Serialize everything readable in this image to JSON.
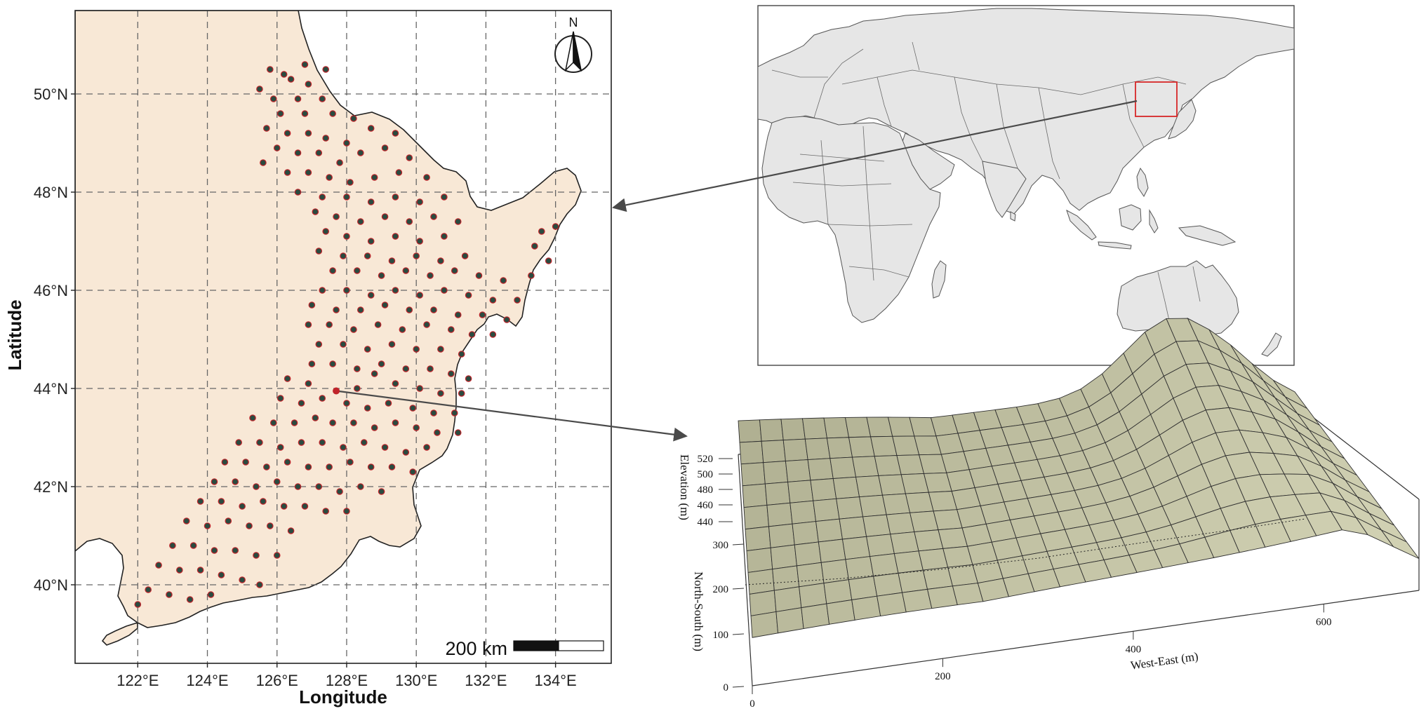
{
  "study_map": {
    "x_axis_title": "Longitude",
    "y_axis_title": "Latitude",
    "longitude_ticks": [
      "122°E",
      "124°E",
      "126°E",
      "128°E",
      "130°E",
      "132°E",
      "134°E"
    ],
    "latitude_ticks": [
      "40°N",
      "42°N",
      "44°N",
      "46°N",
      "48°N",
      "50°N"
    ],
    "lon_range": [
      120.2,
      135.6
    ],
    "lat_range": [
      38.4,
      51.7
    ],
    "north_arrow_label": "N",
    "scale_bar_label": "200 km",
    "grid": "dashed",
    "land_color": "#f8e8d6",
    "point_fill_color": "#2a4b40",
    "point_outline_color": "#c0242a",
    "highlight_point_color": "#c0242a",
    "highlighted_site": {
      "lon": 127.7,
      "lat": 43.95
    },
    "sample_sites": [
      [
        125.8,
        50.5
      ],
      [
        126.2,
        50.4
      ],
      [
        126.8,
        50.6
      ],
      [
        127.4,
        50.5
      ],
      [
        126.4,
        50.3
      ],
      [
        125.5,
        50.1
      ],
      [
        126.9,
        50.2
      ],
      [
        125.9,
        49.9
      ],
      [
        126.6,
        49.9
      ],
      [
        127.3,
        49.9
      ],
      [
        126.1,
        49.6
      ],
      [
        126.8,
        49.6
      ],
      [
        127.6,
        49.6
      ],
      [
        128.2,
        49.5
      ],
      [
        125.7,
        49.3
      ],
      [
        126.3,
        49.2
      ],
      [
        126.9,
        49.2
      ],
      [
        127.4,
        49.1
      ],
      [
        128.0,
        49.0
      ],
      [
        128.7,
        49.3
      ],
      [
        129.4,
        49.2
      ],
      [
        126.0,
        48.9
      ],
      [
        126.6,
        48.8
      ],
      [
        127.2,
        48.8
      ],
      [
        127.8,
        48.6
      ],
      [
        128.4,
        48.8
      ],
      [
        129.1,
        48.9
      ],
      [
        129.8,
        48.7
      ],
      [
        125.6,
        48.6
      ],
      [
        126.3,
        48.4
      ],
      [
        126.9,
        48.4
      ],
      [
        127.5,
        48.3
      ],
      [
        128.1,
        48.2
      ],
      [
        128.8,
        48.3
      ],
      [
        129.5,
        48.4
      ],
      [
        130.3,
        48.3
      ],
      [
        126.6,
        48.0
      ],
      [
        127.3,
        47.9
      ],
      [
        128.0,
        47.9
      ],
      [
        128.7,
        47.8
      ],
      [
        129.4,
        47.9
      ],
      [
        130.1,
        47.8
      ],
      [
        130.8,
        47.9
      ],
      [
        127.1,
        47.6
      ],
      [
        127.7,
        47.5
      ],
      [
        128.4,
        47.4
      ],
      [
        129.1,
        47.5
      ],
      [
        129.8,
        47.4
      ],
      [
        130.5,
        47.5
      ],
      [
        131.2,
        47.4
      ],
      [
        127.4,
        47.2
      ],
      [
        128.0,
        47.1
      ],
      [
        128.7,
        47.0
      ],
      [
        129.4,
        47.1
      ],
      [
        130.1,
        47.0
      ],
      [
        130.8,
        47.1
      ],
      [
        133.6,
        47.2
      ],
      [
        134.0,
        47.3
      ],
      [
        127.2,
        46.8
      ],
      [
        127.9,
        46.7
      ],
      [
        128.6,
        46.7
      ],
      [
        129.3,
        46.6
      ],
      [
        130.0,
        46.7
      ],
      [
        130.7,
        46.6
      ],
      [
        131.4,
        46.7
      ],
      [
        133.4,
        46.9
      ],
      [
        133.8,
        46.6
      ],
      [
        127.6,
        46.4
      ],
      [
        128.3,
        46.4
      ],
      [
        129.0,
        46.3
      ],
      [
        129.7,
        46.4
      ],
      [
        130.4,
        46.3
      ],
      [
        131.1,
        46.4
      ],
      [
        131.8,
        46.3
      ],
      [
        132.5,
        46.2
      ],
      [
        133.3,
        46.3
      ],
      [
        127.3,
        46.0
      ],
      [
        128.0,
        46.0
      ],
      [
        128.7,
        45.9
      ],
      [
        129.4,
        46.0
      ],
      [
        130.1,
        45.9
      ],
      [
        130.8,
        46.0
      ],
      [
        131.5,
        45.9
      ],
      [
        132.2,
        45.8
      ],
      [
        132.9,
        45.8
      ],
      [
        127.0,
        45.7
      ],
      [
        127.7,
        45.6
      ],
      [
        128.4,
        45.6
      ],
      [
        129.1,
        45.7
      ],
      [
        129.8,
        45.6
      ],
      [
        130.5,
        45.6
      ],
      [
        131.2,
        45.5
      ],
      [
        131.9,
        45.5
      ],
      [
        132.6,
        45.4
      ],
      [
        126.9,
        45.3
      ],
      [
        127.5,
        45.3
      ],
      [
        128.2,
        45.2
      ],
      [
        128.9,
        45.3
      ],
      [
        129.6,
        45.2
      ],
      [
        130.3,
        45.3
      ],
      [
        131.0,
        45.2
      ],
      [
        131.6,
        45.1
      ],
      [
        132.2,
        45.1
      ],
      [
        127.2,
        44.9
      ],
      [
        127.9,
        44.9
      ],
      [
        128.6,
        44.8
      ],
      [
        129.3,
        44.9
      ],
      [
        130.0,
        44.8
      ],
      [
        130.7,
        44.8
      ],
      [
        131.3,
        44.7
      ],
      [
        127.0,
        44.5
      ],
      [
        127.6,
        44.5
      ],
      [
        128.3,
        44.4
      ],
      [
        129.0,
        44.5
      ],
      [
        129.7,
        44.4
      ],
      [
        130.4,
        44.4
      ],
      [
        131.0,
        44.3
      ],
      [
        131.5,
        44.2
      ],
      [
        126.3,
        44.2
      ],
      [
        126.9,
        44.1
      ],
      [
        128.3,
        44.0
      ],
      [
        128.8,
        44.3
      ],
      [
        129.4,
        44.1
      ],
      [
        130.1,
        44.0
      ],
      [
        130.7,
        43.9
      ],
      [
        131.3,
        43.9
      ],
      [
        126.1,
        43.8
      ],
      [
        126.7,
        43.7
      ],
      [
        127.3,
        43.8
      ],
      [
        128.0,
        43.7
      ],
      [
        128.6,
        43.6
      ],
      [
        129.2,
        43.7
      ],
      [
        129.9,
        43.6
      ],
      [
        130.5,
        43.5
      ],
      [
        131.1,
        43.5
      ],
      [
        125.3,
        43.4
      ],
      [
        125.9,
        43.3
      ],
      [
        126.5,
        43.3
      ],
      [
        127.1,
        43.4
      ],
      [
        127.6,
        43.3
      ],
      [
        128.2,
        43.3
      ],
      [
        128.8,
        43.2
      ],
      [
        129.4,
        43.3
      ],
      [
        130.0,
        43.2
      ],
      [
        130.6,
        43.1
      ],
      [
        131.2,
        43.1
      ],
      [
        124.9,
        42.9
      ],
      [
        125.5,
        42.9
      ],
      [
        126.1,
        42.8
      ],
      [
        126.7,
        42.9
      ],
      [
        127.3,
        42.9
      ],
      [
        127.9,
        42.8
      ],
      [
        128.5,
        42.9
      ],
      [
        129.1,
        42.8
      ],
      [
        129.7,
        42.7
      ],
      [
        130.3,
        42.8
      ],
      [
        124.5,
        42.5
      ],
      [
        125.1,
        42.5
      ],
      [
        125.7,
        42.4
      ],
      [
        126.3,
        42.5
      ],
      [
        126.9,
        42.4
      ],
      [
        127.5,
        42.4
      ],
      [
        128.1,
        42.5
      ],
      [
        128.7,
        42.4
      ],
      [
        129.3,
        42.4
      ],
      [
        129.9,
        42.3
      ],
      [
        124.2,
        42.1
      ],
      [
        124.8,
        42.1
      ],
      [
        125.4,
        42.0
      ],
      [
        126.0,
        42.1
      ],
      [
        126.6,
        42.0
      ],
      [
        127.2,
        42.0
      ],
      [
        127.8,
        41.9
      ],
      [
        128.4,
        42.0
      ],
      [
        129.0,
        41.9
      ],
      [
        123.8,
        41.7
      ],
      [
        124.4,
        41.7
      ],
      [
        125.0,
        41.6
      ],
      [
        125.6,
        41.7
      ],
      [
        126.2,
        41.6
      ],
      [
        126.8,
        41.6
      ],
      [
        127.4,
        41.5
      ],
      [
        128.0,
        41.5
      ],
      [
        123.4,
        41.3
      ],
      [
        124.0,
        41.2
      ],
      [
        124.6,
        41.3
      ],
      [
        125.2,
        41.2
      ],
      [
        125.8,
        41.2
      ],
      [
        126.4,
        41.1
      ],
      [
        123.0,
        40.8
      ],
      [
        123.6,
        40.8
      ],
      [
        124.2,
        40.7
      ],
      [
        124.8,
        40.7
      ],
      [
        125.4,
        40.6
      ],
      [
        126.0,
        40.6
      ],
      [
        122.6,
        40.4
      ],
      [
        123.2,
        40.3
      ],
      [
        123.8,
        40.3
      ],
      [
        124.4,
        40.2
      ],
      [
        125.0,
        40.1
      ],
      [
        125.5,
        40.0
      ],
      [
        122.3,
        39.9
      ],
      [
        122.9,
        39.8
      ],
      [
        123.5,
        39.7
      ],
      [
        124.1,
        39.8
      ],
      [
        122.0,
        39.6
      ]
    ]
  },
  "globe_map": {
    "land_color": "#e6e6e6",
    "border_color": "#555555",
    "highlight_box_color": "#d62728"
  },
  "terrain_plot": {
    "z_axis_title": "Elevation (m)",
    "y_axis_title": "North-South (m)",
    "x_axis_title": "West-East (m)",
    "z_ticks": [
      "520",
      "500",
      "480",
      "460",
      "440"
    ],
    "y_ticks": [
      "300",
      "200",
      "100",
      "0"
    ],
    "x_ticks": [
      "0",
      "200",
      "400",
      "600"
    ],
    "surface_color": "#c9c6ac",
    "grid_line_color": "#2f2f2f"
  },
  "connectors": {
    "globe_to_study_map": "arrow",
    "site_to_terrain_plot": "arrow",
    "color": "#4a4a4a"
  }
}
